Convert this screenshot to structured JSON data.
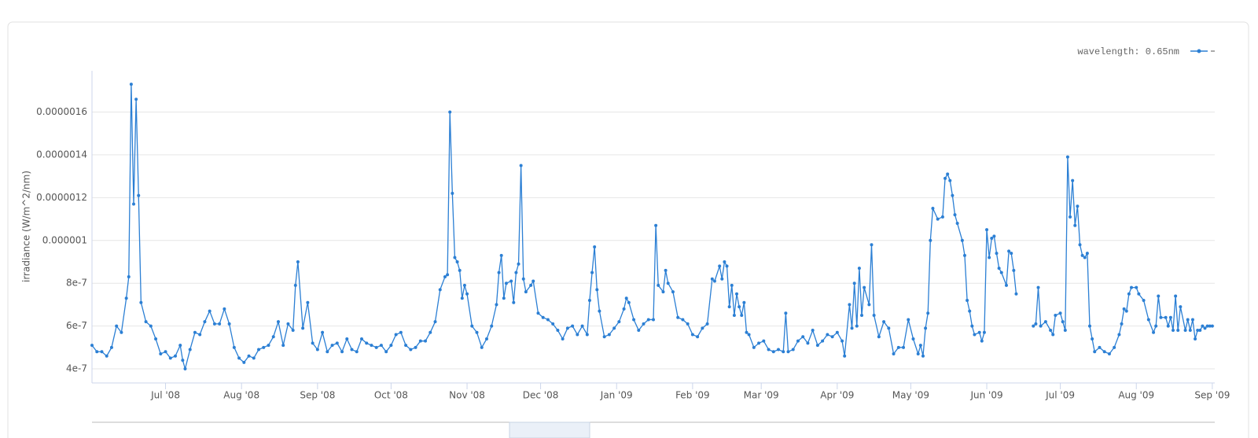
{
  "chart_data": {
    "type": "line",
    "y_label": "irradiance (W/m^2/nm)",
    "xlim": [
      0,
      458
    ],
    "ylim": [
      3.34e-07,
      1.793e-06
    ],
    "xticks": [
      {
        "value": 30,
        "label": "Jul '08"
      },
      {
        "value": 61,
        "label": "Aug '08"
      },
      {
        "value": 92,
        "label": "Sep '08"
      },
      {
        "value": 122,
        "label": "Oct '08"
      },
      {
        "value": 153,
        "label": "Nov '08"
      },
      {
        "value": 183,
        "label": "Dec '08"
      },
      {
        "value": 214,
        "label": "Jan '09"
      },
      {
        "value": 245,
        "label": "Feb '09"
      },
      {
        "value": 273,
        "label": "Mar '09"
      },
      {
        "value": 304,
        "label": "Apr '09"
      },
      {
        "value": 334,
        "label": "May '09"
      },
      {
        "value": 365,
        "label": "Jun '09"
      },
      {
        "value": 395,
        "label": "Jul '09"
      },
      {
        "value": 426,
        "label": "Aug '09"
      },
      {
        "value": 457,
        "label": "Sep '09"
      }
    ],
    "yticks": [
      {
        "value": 4e-07,
        "label": "4e-7"
      },
      {
        "value": 6e-07,
        "label": "6e-7"
      },
      {
        "value": 8e-07,
        "label": "8e-7"
      },
      {
        "value": 1e-06,
        "label": "0.000001"
      },
      {
        "value": 1.2e-06,
        "label": "0.0000012"
      },
      {
        "value": 1.4e-06,
        "label": "0.0000014"
      },
      {
        "value": 1.6e-06,
        "label": "0.0000016"
      }
    ],
    "grid": true,
    "legend": "top-right",
    "series": [
      {
        "name": "wavelength: 0.65nm",
        "color": "#2b7fd4",
        "x": [
          0,
          2,
          4,
          6,
          8,
          10,
          12,
          14,
          15,
          16,
          17,
          18,
          19,
          20,
          22,
          24,
          26,
          28,
          30,
          32,
          34,
          36,
          37,
          38,
          40,
          42,
          44,
          46,
          48,
          50,
          52,
          54,
          56,
          58,
          60,
          62,
          64,
          66,
          68,
          70,
          72,
          74,
          76,
          78,
          80,
          82,
          83,
          84,
          86,
          88,
          90,
          92,
          94,
          96,
          98,
          100,
          102,
          104,
          106,
          108,
          110,
          112,
          114,
          116,
          118,
          120,
          122,
          124,
          126,
          128,
          130,
          132,
          134,
          136,
          138,
          140,
          142,
          144,
          145,
          146,
          147,
          148,
          149,
          150,
          151,
          152,
          153,
          155,
          157,
          159,
          161,
          163,
          165,
          166,
          167,
          168,
          169,
          171,
          172,
          173,
          174,
          175,
          176,
          177,
          179,
          180,
          182,
          184,
          186,
          188,
          190,
          192,
          194,
          196,
          198,
          200,
          202,
          203,
          204,
          205,
          206,
          207,
          209,
          211,
          213,
          215,
          217,
          218,
          219,
          221,
          223,
          225,
          227,
          229,
          230,
          231,
          233,
          234,
          235,
          237,
          239,
          241,
          243,
          245,
          247,
          249,
          251,
          253,
          254,
          256,
          257,
          258,
          259,
          260,
          261,
          262,
          263,
          264,
          265,
          266,
          267,
          268,
          270,
          272,
          274,
          276,
          278,
          280,
          282,
          283,
          284,
          286,
          288,
          290,
          292,
          294,
          296,
          298,
          300,
          302,
          304,
          306,
          307,
          309,
          310,
          311,
          312,
          313,
          314,
          315,
          317,
          318,
          319,
          321,
          323,
          325,
          327,
          329,
          331,
          333,
          335,
          337,
          338,
          339,
          340,
          341,
          342,
          343,
          345,
          347,
          348,
          349,
          350,
          351,
          352,
          353,
          355,
          356,
          357,
          358,
          359,
          360,
          362,
          363,
          364,
          365,
          366,
          367,
          368,
          369,
          370,
          371,
          373,
          374,
          375,
          376,
          377,
          380,
          384,
          385,
          386,
          387,
          389,
          391,
          392,
          393,
          395,
          396,
          397,
          398,
          399,
          400,
          401,
          402,
          403,
          404,
          405,
          406,
          407,
          408,
          409,
          411,
          413,
          415,
          417,
          419,
          420,
          421,
          422,
          423,
          424,
          426,
          427,
          429,
          431,
          433,
          434,
          435,
          436,
          438,
          439,
          440,
          441,
          442,
          443,
          444,
          446,
          447,
          448,
          449,
          450,
          451,
          452,
          453,
          454,
          455,
          456,
          457
        ],
        "values": [
          5.1e-07,
          4.8e-07,
          4.8e-07,
          4.6e-07,
          5e-07,
          6e-07,
          5.7e-07,
          7.3e-07,
          8.3e-07,
          1.73e-06,
          1.17e-06,
          1.66e-06,
          1.21e-06,
          7.1e-07,
          6.2e-07,
          6e-07,
          5.4e-07,
          4.7e-07,
          4.8e-07,
          4.5e-07,
          4.6e-07,
          5.1e-07,
          4.4e-07,
          4e-07,
          4.9e-07,
          5.7e-07,
          5.6e-07,
          6.2e-07,
          6.7e-07,
          6.1e-07,
          6.1e-07,
          6.8e-07,
          6.1e-07,
          5e-07,
          4.5e-07,
          4.3e-07,
          4.6e-07,
          4.5e-07,
          4.9e-07,
          5e-07,
          5.1e-07,
          5.5e-07,
          6.2e-07,
          5.1e-07,
          6.1e-07,
          5.8e-07,
          7.9e-07,
          9e-07,
          5.9e-07,
          7.1e-07,
          5.2e-07,
          4.9e-07,
          5.7e-07,
          4.8e-07,
          5.1e-07,
          5.2e-07,
          4.8e-07,
          5.4e-07,
          4.9e-07,
          4.8e-07,
          5.4e-07,
          5.2e-07,
          5.1e-07,
          5e-07,
          5.1e-07,
          4.8e-07,
          5.1e-07,
          5.6e-07,
          5.7e-07,
          5.1e-07,
          4.9e-07,
          5e-07,
          5.3e-07,
          5.3e-07,
          5.7e-07,
          6.2e-07,
          7.7e-07,
          8.3e-07,
          8.4e-07,
          1.6e-06,
          1.22e-06,
          9.2e-07,
          9e-07,
          8.6e-07,
          7.3e-07,
          7.9e-07,
          7.5e-07,
          6e-07,
          5.7e-07,
          5e-07,
          5.4e-07,
          6e-07,
          7e-07,
          8.5e-07,
          9.3e-07,
          7.3e-07,
          8e-07,
          8.1e-07,
          7.1e-07,
          8.5e-07,
          8.9e-07,
          1.35e-06,
          8.2e-07,
          7.6e-07,
          7.9e-07,
          8.1e-07,
          6.6e-07,
          6.4e-07,
          6.3e-07,
          6.1e-07,
          5.8e-07,
          5.4e-07,
          5.9e-07,
          6e-07,
          5.6e-07,
          6e-07,
          5.6e-07,
          7.2e-07,
          8.5e-07,
          9.7e-07,
          7.7e-07,
          6.7e-07,
          5.5e-07,
          5.6e-07,
          5.9e-07,
          6.2e-07,
          6.8e-07,
          7.3e-07,
          7.1e-07,
          6.3e-07,
          5.8e-07,
          6.1e-07,
          6.3e-07,
          6.3e-07,
          1.07e-06,
          7.9e-07,
          7.6e-07,
          8.6e-07,
          8e-07,
          7.6e-07,
          6.4e-07,
          6.3e-07,
          6.1e-07,
          5.6e-07,
          5.5e-07,
          5.9e-07,
          6.1e-07,
          8.2e-07,
          8.1e-07,
          8.8e-07,
          8.2e-07,
          9e-07,
          8.8e-07,
          6.9e-07,
          7.9e-07,
          6.5e-07,
          7.5e-07,
          6.9e-07,
          6.5e-07,
          7.1e-07,
          5.7e-07,
          5.6e-07,
          5e-07,
          5.2e-07,
          5.3e-07,
          4.9e-07,
          4.8e-07,
          4.9e-07,
          4.8e-07,
          6.6e-07,
          4.8e-07,
          4.9e-07,
          5.3e-07,
          5.5e-07,
          5.2e-07,
          5.8e-07,
          5.1e-07,
          5.3e-07,
          5.6e-07,
          5.5e-07,
          5.7e-07,
          5.3e-07,
          4.6e-07,
          7e-07,
          5.9e-07,
          8e-07,
          6e-07,
          8.7e-07,
          6.5e-07,
          7.8e-07,
          7e-07,
          9.8e-07,
          6.5e-07,
          5.5e-07,
          6.2e-07,
          5.9e-07,
          4.7e-07,
          5e-07,
          5e-07,
          6.3e-07,
          5.4e-07,
          4.7e-07,
          5.1e-07,
          4.6e-07,
          5.9e-07,
          6.6e-07,
          1e-06,
          1.15e-06,
          1.1e-06,
          1.11e-06,
          1.29e-06,
          1.31e-06,
          1.28e-06,
          1.21e-06,
          1.12e-06,
          1.08e-06,
          1e-06,
          9.3e-07,
          7.2e-07,
          6.7e-07,
          6e-07,
          5.6e-07,
          5.7e-07,
          5.3e-07,
          5.7e-07,
          1.05e-06,
          9.2e-07,
          1.01e-06,
          1.02e-06,
          9.4e-07,
          8.7e-07,
          8.5e-07,
          7.9e-07,
          9.5e-07,
          9.4e-07,
          8.6e-07,
          7.5e-07,
          null,
          6e-07,
          6.1e-07,
          7.8e-07,
          6e-07,
          6.2e-07,
          5.8e-07,
          5.6e-07,
          6.5e-07,
          6.6e-07,
          6.2e-07,
          5.8e-07,
          1.39e-06,
          1.11e-06,
          1.28e-06,
          1.07e-06,
          1.16e-06,
          9.8e-07,
          9.3e-07,
          9.2e-07,
          9.4e-07,
          6e-07,
          5.4e-07,
          4.8e-07,
          5e-07,
          4.8e-07,
          4.7e-07,
          5e-07,
          5.6e-07,
          6.1e-07,
          6.8e-07,
          6.7e-07,
          7.5e-07,
          7.8e-07,
          7.8e-07,
          7.5e-07,
          7.2e-07,
          6.3e-07,
          5.7e-07,
          6e-07,
          7.4e-07,
          6.4e-07,
          6.4e-07,
          6e-07,
          6.4e-07,
          5.8e-07,
          7.4e-07,
          5.8e-07,
          6.9e-07,
          5.8e-07,
          6.3e-07,
          5.8e-07,
          6.3e-07,
          5.4e-07,
          5.8e-07,
          5.8e-07,
          6e-07,
          5.9e-07,
          6e-07,
          6e-07,
          6e-07
        ]
      }
    ]
  }
}
